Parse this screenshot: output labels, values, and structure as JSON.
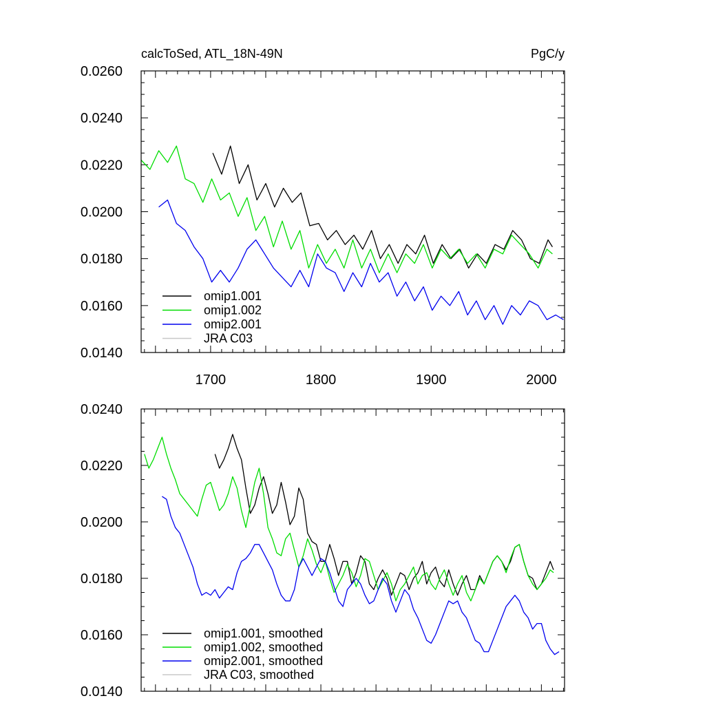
{
  "chart_data": [
    {
      "type": "line",
      "title": "calcToSed, ATL_18N-49N",
      "units": "PgC/y",
      "xlim": [
        1637,
        2021
      ],
      "ylim": [
        0.014,
        0.026
      ],
      "yticks": [
        "0.0140",
        "0.0160",
        "0.0180",
        "0.0200",
        "0.0220",
        "0.0240",
        "0.0260"
      ],
      "xticks": [
        "1700",
        "1800",
        "1900",
        "2000"
      ],
      "legend_placement": "bottom-left",
      "series": [
        {
          "name": "omip1.001",
          "color": "#000000",
          "x": [
            1702,
            1710,
            1718,
            1726,
            1734,
            1742,
            1750,
            1758,
            1766,
            1774,
            1782,
            1790,
            1798,
            1806,
            1814,
            1822,
            1830,
            1838,
            1846,
            1854,
            1862,
            1870,
            1878,
            1886,
            1894,
            1902,
            1910,
            1918,
            1926,
            1934,
            1942,
            1950,
            1958,
            1966,
            1974,
            1982,
            1990,
            1998,
            2006,
            2010
          ],
          "y": [
            0.0225,
            0.0216,
            0.0228,
            0.0212,
            0.022,
            0.0205,
            0.0212,
            0.0202,
            0.021,
            0.0204,
            0.0208,
            0.0194,
            0.0195,
            0.0188,
            0.0192,
            0.0186,
            0.019,
            0.0184,
            0.0192,
            0.018,
            0.0186,
            0.0178,
            0.0186,
            0.0182,
            0.019,
            0.0178,
            0.0186,
            0.018,
            0.0184,
            0.0176,
            0.0182,
            0.0178,
            0.0186,
            0.0184,
            0.0192,
            0.0188,
            0.018,
            0.0178,
            0.0188,
            0.0185
          ]
        },
        {
          "name": "omip1.002",
          "color": "#00dd00",
          "x": [
            1637,
            1645,
            1653,
            1661,
            1669,
            1677,
            1685,
            1693,
            1701,
            1709,
            1717,
            1725,
            1733,
            1741,
            1749,
            1757,
            1765,
            1773,
            1781,
            1789,
            1797,
            1805,
            1813,
            1821,
            1829,
            1837,
            1845,
            1853,
            1861,
            1869,
            1877,
            1885,
            1893,
            1901,
            1909,
            1917,
            1925,
            1933,
            1941,
            1949,
            1957,
            1965,
            1973,
            1981,
            1989,
            1997,
            2005,
            2010
          ],
          "y": [
            0.0222,
            0.0218,
            0.0226,
            0.0221,
            0.0228,
            0.0214,
            0.0212,
            0.0204,
            0.0214,
            0.0205,
            0.0208,
            0.0198,
            0.0206,
            0.0192,
            0.0198,
            0.0185,
            0.0196,
            0.0184,
            0.0192,
            0.0176,
            0.0186,
            0.0178,
            0.0184,
            0.0176,
            0.0188,
            0.0176,
            0.0184,
            0.0174,
            0.0182,
            0.0174,
            0.0182,
            0.0178,
            0.0186,
            0.0176,
            0.0184,
            0.018,
            0.0184,
            0.0178,
            0.0182,
            0.0176,
            0.0184,
            0.0182,
            0.019,
            0.0186,
            0.0182,
            0.0176,
            0.0184,
            0.0182
          ]
        },
        {
          "name": "omip2.001",
          "color": "#0000ee",
          "x": [
            1653,
            1661,
            1669,
            1677,
            1685,
            1693,
            1701,
            1709,
            1717,
            1725,
            1733,
            1741,
            1749,
            1757,
            1765,
            1773,
            1781,
            1789,
            1797,
            1805,
            1813,
            1821,
            1829,
            1837,
            1845,
            1853,
            1861,
            1869,
            1877,
            1885,
            1893,
            1901,
            1909,
            1917,
            1925,
            1933,
            1941,
            1949,
            1957,
            1965,
            1973,
            1981,
            1989,
            1997,
            2005,
            2013,
            2020
          ],
          "y": [
            0.0202,
            0.0205,
            0.0195,
            0.0192,
            0.0185,
            0.018,
            0.017,
            0.0175,
            0.017,
            0.0176,
            0.0184,
            0.0188,
            0.0182,
            0.0176,
            0.0172,
            0.0168,
            0.0175,
            0.0168,
            0.0182,
            0.0176,
            0.0174,
            0.0166,
            0.0174,
            0.0168,
            0.0178,
            0.017,
            0.0174,
            0.0164,
            0.017,
            0.0162,
            0.0168,
            0.0158,
            0.0164,
            0.016,
            0.0166,
            0.0156,
            0.0162,
            0.0154,
            0.016,
            0.0152,
            0.016,
            0.0156,
            0.0162,
            0.016,
            0.0154,
            0.0156,
            0.0154
          ]
        },
        {
          "name": "JRA C03",
          "color": "#c8c8c8",
          "x": [],
          "y": []
        }
      ]
    },
    {
      "type": "line",
      "title": "",
      "xlim": [
        1637,
        2021
      ],
      "ylim": [
        0.014,
        0.024
      ],
      "yticks": [
        "0.0140",
        "0.0160",
        "0.0180",
        "0.0200",
        "0.0220",
        "0.0240"
      ],
      "legend_placement": "bottom-left",
      "series": [
        {
          "name": "omip1.001, smoothed",
          "color": "#000000",
          "x": [
            1704,
            1708,
            1712,
            1716,
            1720,
            1724,
            1728,
            1732,
            1736,
            1740,
            1744,
            1748,
            1752,
            1756,
            1760,
            1764,
            1768,
            1772,
            1776,
            1780,
            1784,
            1788,
            1792,
            1796,
            1800,
            1804,
            1808,
            1812,
            1816,
            1820,
            1824,
            1828,
            1832,
            1836,
            1840,
            1844,
            1848,
            1852,
            1856,
            1860,
            1864,
            1868,
            1872,
            1876,
            1880,
            1884,
            1888,
            1892,
            1896,
            1900,
            1904,
            1908,
            1912,
            1916,
            1920,
            1924,
            1928,
            1932,
            1936,
            1940,
            1944,
            1948,
            1952,
            1956,
            1960,
            1964,
            1968,
            1972,
            1976,
            1980,
            1984,
            1988,
            1992,
            1996,
            2000,
            2004,
            2008,
            2011
          ],
          "y": [
            0.0224,
            0.0219,
            0.0222,
            0.0226,
            0.0231,
            0.0226,
            0.0222,
            0.0212,
            0.0203,
            0.0206,
            0.0212,
            0.0216,
            0.021,
            0.0203,
            0.0206,
            0.0214,
            0.0207,
            0.0199,
            0.0202,
            0.0212,
            0.0208,
            0.0196,
            0.0193,
            0.0192,
            0.0186,
            0.0186,
            0.0192,
            0.0187,
            0.0181,
            0.0186,
            0.0186,
            0.0178,
            0.0182,
            0.0188,
            0.0186,
            0.0178,
            0.0176,
            0.018,
            0.0183,
            0.018,
            0.0174,
            0.0178,
            0.0182,
            0.0181,
            0.0176,
            0.018,
            0.0182,
            0.0186,
            0.0178,
            0.0182,
            0.0184,
            0.0179,
            0.0177,
            0.0183,
            0.0178,
            0.0174,
            0.0178,
            0.0181,
            0.0176,
            0.0176,
            0.0181,
            0.0178,
            0.0182,
            0.0186,
            0.0188,
            0.0186,
            0.0183,
            0.0186,
            0.0191,
            0.0192,
            0.0186,
            0.0181,
            0.018,
            0.0176,
            0.0178,
            0.0182,
            0.0186,
            0.0183
          ]
        },
        {
          "name": "omip1.002, smoothed",
          "color": "#00dd00",
          "x": [
            1640,
            1644,
            1648,
            1652,
            1656,
            1660,
            1664,
            1668,
            1672,
            1676,
            1680,
            1684,
            1688,
            1692,
            1696,
            1700,
            1704,
            1708,
            1712,
            1716,
            1720,
            1724,
            1728,
            1732,
            1736,
            1740,
            1744,
            1748,
            1752,
            1756,
            1760,
            1764,
            1768,
            1772,
            1776,
            1780,
            1784,
            1788,
            1792,
            1796,
            1800,
            1804,
            1808,
            1812,
            1816,
            1820,
            1824,
            1828,
            1832,
            1836,
            1840,
            1844,
            1848,
            1852,
            1856,
            1860,
            1864,
            1868,
            1872,
            1876,
            1880,
            1884,
            1888,
            1892,
            1896,
            1900,
            1904,
            1908,
            1912,
            1916,
            1920,
            1924,
            1928,
            1932,
            1936,
            1940,
            1944,
            1948,
            1952,
            1956,
            1960,
            1964,
            1968,
            1972,
            1976,
            1980,
            1984,
            1988,
            1992,
            1996,
            2000,
            2004,
            2008,
            2011
          ],
          "y": [
            0.0224,
            0.0219,
            0.0222,
            0.0226,
            0.023,
            0.0224,
            0.0219,
            0.0215,
            0.021,
            0.0208,
            0.0206,
            0.0204,
            0.0202,
            0.0208,
            0.0213,
            0.0214,
            0.0209,
            0.0204,
            0.0206,
            0.021,
            0.0216,
            0.0212,
            0.0204,
            0.0198,
            0.0206,
            0.0214,
            0.0219,
            0.021,
            0.0198,
            0.0194,
            0.0189,
            0.0188,
            0.0194,
            0.0196,
            0.019,
            0.0184,
            0.0188,
            0.0194,
            0.019,
            0.0185,
            0.0182,
            0.0186,
            0.018,
            0.0175,
            0.0178,
            0.0181,
            0.0185,
            0.0182,
            0.0177,
            0.0181,
            0.0187,
            0.0186,
            0.0181,
            0.0176,
            0.0179,
            0.0182,
            0.0178,
            0.0172,
            0.0176,
            0.0178,
            0.0181,
            0.0184,
            0.0178,
            0.0181,
            0.0182,
            0.0178,
            0.0176,
            0.018,
            0.0183,
            0.0178,
            0.0174,
            0.0178,
            0.0181,
            0.0175,
            0.0172,
            0.0176,
            0.018,
            0.0178,
            0.0182,
            0.0186,
            0.0188,
            0.0186,
            0.0182,
            0.0187,
            0.0191,
            0.0192,
            0.0186,
            0.0181,
            0.0178,
            0.0176,
            0.0178,
            0.018,
            0.0183,
            0.0182
          ]
        },
        {
          "name": "omip2.001, smoothed",
          "color": "#0000ee",
          "x": [
            1656,
            1660,
            1664,
            1668,
            1672,
            1676,
            1680,
            1684,
            1688,
            1692,
            1696,
            1700,
            1704,
            1708,
            1712,
            1716,
            1720,
            1724,
            1728,
            1732,
            1736,
            1740,
            1744,
            1748,
            1752,
            1756,
            1760,
            1764,
            1768,
            1772,
            1776,
            1780,
            1784,
            1788,
            1792,
            1796,
            1800,
            1804,
            1808,
            1812,
            1816,
            1820,
            1824,
            1828,
            1832,
            1836,
            1840,
            1844,
            1848,
            1852,
            1856,
            1860,
            1864,
            1868,
            1872,
            1876,
            1880,
            1884,
            1888,
            1892,
            1896,
            1900,
            1904,
            1908,
            1912,
            1916,
            1920,
            1924,
            1928,
            1932,
            1936,
            1940,
            1944,
            1948,
            1952,
            1956,
            1960,
            1964,
            1968,
            1972,
            1976,
            1980,
            1984,
            1988,
            1992,
            1996,
            2000,
            2004,
            2008,
            2012,
            2016
          ],
          "y": [
            0.0209,
            0.0208,
            0.0202,
            0.0198,
            0.0196,
            0.0192,
            0.0188,
            0.0184,
            0.0178,
            0.0174,
            0.0175,
            0.0174,
            0.0176,
            0.0173,
            0.0175,
            0.0177,
            0.0176,
            0.0182,
            0.0186,
            0.0187,
            0.0189,
            0.0192,
            0.0192,
            0.0189,
            0.0186,
            0.0183,
            0.0178,
            0.0174,
            0.0172,
            0.0172,
            0.0176,
            0.0184,
            0.0187,
            0.0184,
            0.0181,
            0.0184,
            0.0187,
            0.0186,
            0.0182,
            0.0177,
            0.0172,
            0.017,
            0.0176,
            0.0178,
            0.018,
            0.0178,
            0.0174,
            0.0171,
            0.0172,
            0.0176,
            0.018,
            0.0178,
            0.0172,
            0.0168,
            0.0172,
            0.0176,
            0.0174,
            0.0169,
            0.0166,
            0.0162,
            0.0158,
            0.0157,
            0.016,
            0.0164,
            0.0168,
            0.0172,
            0.0171,
            0.0172,
            0.0168,
            0.0166,
            0.0162,
            0.0158,
            0.0157,
            0.0154,
            0.0154,
            0.0158,
            0.0162,
            0.0166,
            0.017,
            0.0172,
            0.0174,
            0.0172,
            0.0168,
            0.0166,
            0.0162,
            0.0164,
            0.0164,
            0.0158,
            0.0155,
            0.0153,
            0.0154
          ]
        },
        {
          "name": "JRA C03, smoothed",
          "color": "#c8c8c8",
          "x": [],
          "y": []
        }
      ]
    }
  ]
}
